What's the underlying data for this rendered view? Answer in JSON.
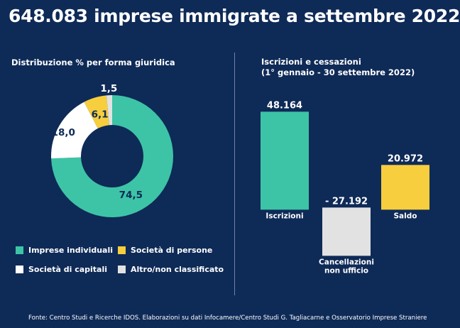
{
  "title": "648.083 imprese immigrate a settembre 2022",
  "colors": {
    "background": "#0e2a57",
    "teal": "#3dc4a6",
    "white": "#ffffff",
    "yellow": "#f7ce3e",
    "gray": "#e2e2e2"
  },
  "chart_data": [
    {
      "type": "pie",
      "title": "Distribuzione % per forma giuridica",
      "labels": [
        "Imprese individuali",
        "Società di persone",
        "Società di capitali",
        "Altro/non classificato"
      ],
      "values": [
        74.5,
        6.1,
        18.0,
        1.5
      ],
      "value_labels": [
        "74,5",
        "6,1",
        "18,0",
        "1,5"
      ],
      "order_clockwise_from_top": [
        "Imprese individuali",
        "Società di capitali",
        "Società di persone",
        "Altro/non classificato"
      ]
    },
    {
      "type": "bar",
      "title": "Iscrizioni e cessazioni",
      "subtitle": "(1° gennaio - 30 settembre 2022)",
      "categories": [
        "Iscrizioni",
        "Cancellazioni non ufficio",
        "Saldo"
      ],
      "category_lines": [
        [
          "Iscrizioni"
        ],
        [
          "Cancellazioni",
          "non ufficio"
        ],
        [
          "Saldo"
        ]
      ],
      "values": [
        48164,
        -27192,
        20972
      ],
      "value_labels": [
        "48.164",
        "- 27.192",
        "20.972"
      ],
      "style": "waterfall"
    }
  ],
  "source": "Fonte: Centro Studi e Ricerche IDOS. Elaborazioni su dati Infocamere/Centro Studi G. Tagliacarne e Osservatorio Imprese Straniere"
}
